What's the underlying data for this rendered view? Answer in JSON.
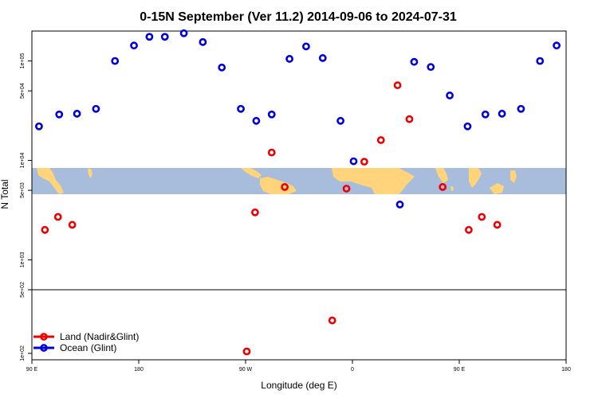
{
  "chart_data": {
    "type": "scatter",
    "title": "0-15N September (Ver 11.2)   2014-09-06 to 2024-07-31",
    "xlabel": "Longitude (deg E)",
    "ylabel": "N Total",
    "x_ticks": [
      "90 E",
      "180",
      "90 W",
      "0",
      "90 E",
      "180"
    ],
    "x_tick_values": [
      90,
      180,
      270,
      360,
      450,
      540
    ],
    "xlim": [
      90,
      540
    ],
    "y_scale": "log",
    "y_ticks_upper": [
      "1e+05",
      "5e+04",
      "1e+04",
      "5e+03",
      "1e+03"
    ],
    "y_tick_values_upper": [
      100000,
      50000,
      10000,
      5000,
      1000
    ],
    "ylim_upper": [
      500,
      200000
    ],
    "y_ticks_lower": [
      "5e+02",
      "1e+02"
    ],
    "y_tick_values_lower": [
      500,
      100
    ],
    "ylim_lower": [
      85,
      500
    ],
    "map_band": {
      "lat_range": "0-15N",
      "y_range": [
        5000,
        10000
      ]
    },
    "legend": {
      "position": "bottom-left"
    },
    "series": [
      {
        "name": "Land (Nadir&Glint)",
        "color": "#ee0000",
        "points": [
          {
            "x": 101,
            "y": 2000
          },
          {
            "x": 112,
            "y": 2700
          },
          {
            "x": 124,
            "y": 2250
          },
          {
            "x": 271,
            "y": 105
          },
          {
            "x": 278,
            "y": 3000
          },
          {
            "x": 292,
            "y": 12000
          },
          {
            "x": 303,
            "y": 5400
          },
          {
            "x": 343,
            "y": 230
          },
          {
            "x": 355,
            "y": 5200
          },
          {
            "x": 370,
            "y": 9700
          },
          {
            "x": 384,
            "y": 16000
          },
          {
            "x": 398,
            "y": 57000
          },
          {
            "x": 408,
            "y": 26000
          },
          {
            "x": 436,
            "y": 5400
          },
          {
            "x": 458,
            "y": 2000
          },
          {
            "x": 469,
            "y": 2700
          },
          {
            "x": 482,
            "y": 2250
          }
        ]
      },
      {
        "name": "Ocean (Glint)",
        "color": "#0000dd",
        "points": [
          {
            "x": 96,
            "y": 22000
          },
          {
            "x": 113,
            "y": 29000
          },
          {
            "x": 128,
            "y": 29500
          },
          {
            "x": 144,
            "y": 33000
          },
          {
            "x": 160,
            "y": 100000
          },
          {
            "x": 176,
            "y": 143000
          },
          {
            "x": 189,
            "y": 175000
          },
          {
            "x": 202,
            "y": 175000
          },
          {
            "x": 218,
            "y": 190000
          },
          {
            "x": 234,
            "y": 155000
          },
          {
            "x": 250,
            "y": 86000
          },
          {
            "x": 266,
            "y": 33000
          },
          {
            "x": 279,
            "y": 25000
          },
          {
            "x": 292,
            "y": 29000
          },
          {
            "x": 307,
            "y": 105000
          },
          {
            "x": 321,
            "y": 140000
          },
          {
            "x": 335,
            "y": 107000
          },
          {
            "x": 350,
            "y": 25000
          },
          {
            "x": 361,
            "y": 9800
          },
          {
            "x": 400,
            "y": 3600
          },
          {
            "x": 412,
            "y": 98000
          },
          {
            "x": 426,
            "y": 87000
          },
          {
            "x": 442,
            "y": 45000
          },
          {
            "x": 457,
            "y": 22000
          },
          {
            "x": 472,
            "y": 29000
          },
          {
            "x": 486,
            "y": 29500
          },
          {
            "x": 502,
            "y": 33000
          },
          {
            "x": 518,
            "y": 100000
          },
          {
            "x": 532,
            "y": 143000
          }
        ]
      }
    ]
  }
}
